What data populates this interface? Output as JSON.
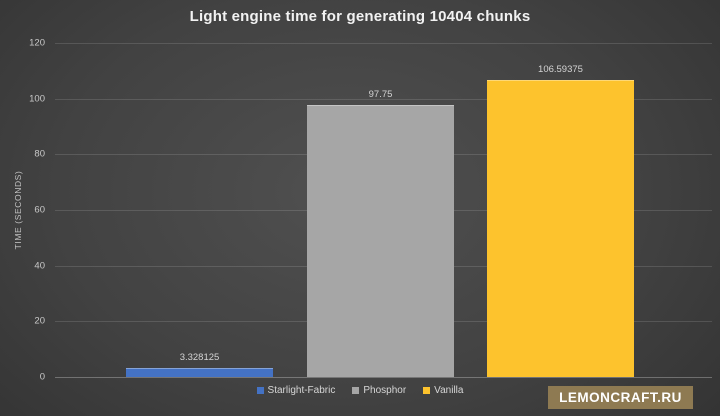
{
  "title": "Light engine time for generating 10404 chunks",
  "watermark_text": "LEMONCRAFT.RU",
  "chart_data": {
    "type": "bar",
    "title": "Light engine time for generating 10404 chunks",
    "categories": [
      "Starlight-Fabric",
      "Phosphor",
      "Vanilla"
    ],
    "values": [
      3.328125,
      97.75,
      106.59375
    ],
    "value_labels": [
      "3.328125",
      "97.75",
      "106.59375"
    ],
    "bar_colors": [
      "#4472c4",
      "#a6a6a6",
      "#fdc32d"
    ],
    "xlabel": "",
    "ylabel": "TIME (SECONDS)",
    "ylim": [
      0,
      120
    ],
    "yticks": [
      0,
      20,
      40,
      60,
      80,
      100,
      120
    ],
    "grid": true,
    "legend": [
      "Starlight-Fabric",
      "Phosphor",
      "Vanilla"
    ],
    "legend_position": "bottom",
    "background": "dark-gray-gradient"
  },
  "colors": {
    "starlight_fabric": "#4472c4",
    "phosphor": "#a6a6a6",
    "vanilla": "#fdc32d",
    "watermark_bg": "#8e7a52",
    "title_text": "#f2f2f2",
    "axis_text": "#c9c9c9"
  }
}
